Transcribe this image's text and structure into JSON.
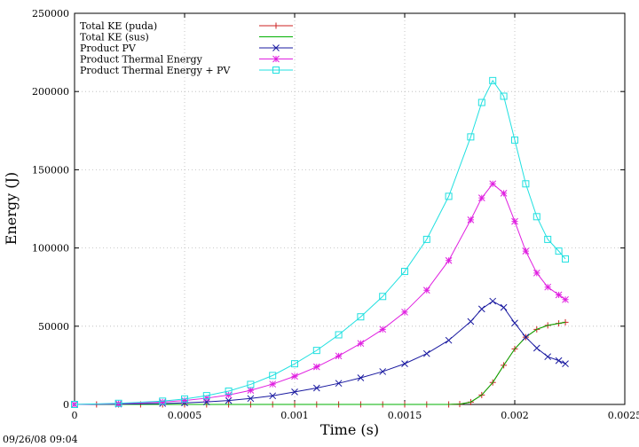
{
  "timestamp": "09/26/08 09:04",
  "chart_data": {
    "type": "line",
    "xlabel": "Time (s)",
    "ylabel": "Energy (J)",
    "xlim": [
      0,
      0.0025
    ],
    "ylim": [
      0,
      250000
    ],
    "x_ticks": [
      "0",
      "0.0005",
      "0.001",
      "0.0015",
      "0.002",
      "0.0025"
    ],
    "y_ticks": [
      "0",
      "50000",
      "100000",
      "150000",
      "200000",
      "250000"
    ],
    "x_tick_values": [
      0,
      0.0005,
      0.001,
      0.0015,
      0.002,
      0.0025
    ],
    "y_tick_values": [
      0,
      50000,
      100000,
      150000,
      200000,
      250000
    ],
    "grid": true,
    "legend_position": "top-left",
    "series": [
      {
        "name": "Total KE (puda)",
        "color": "#cc2222",
        "marker": "plus",
        "x": [
          0,
          0.0001,
          0.0002,
          0.0003,
          0.0004,
          0.0005,
          0.0006,
          0.0007,
          0.0008,
          0.0009,
          0.001,
          0.0011,
          0.0012,
          0.0013,
          0.0014,
          0.0015,
          0.0016,
          0.0017,
          0.00175,
          0.0018,
          0.00185,
          0.0019,
          0.00195,
          0.002,
          0.00205,
          0.0021,
          0.00215,
          0.0022,
          0.00223
        ],
        "y": [
          0,
          0,
          0,
          0,
          0,
          0,
          0,
          0,
          0,
          0,
          0,
          0,
          0,
          0,
          0,
          0,
          0,
          0,
          200,
          1500,
          6000,
          14000,
          25000,
          35500,
          43000,
          48000,
          50500,
          51800,
          52500
        ]
      },
      {
        "name": "Total KE (sus)",
        "color": "#00b000",
        "marker": "none",
        "x": [
          0,
          0.0001,
          0.0002,
          0.0003,
          0.0004,
          0.0005,
          0.0006,
          0.0007,
          0.0008,
          0.0009,
          0.001,
          0.0011,
          0.0012,
          0.0013,
          0.0014,
          0.0015,
          0.0016,
          0.0017,
          0.00175,
          0.0018,
          0.00185,
          0.0019,
          0.00195,
          0.002,
          0.00205,
          0.0021,
          0.00215,
          0.0022,
          0.00223
        ],
        "y": [
          0,
          0,
          0,
          0,
          0,
          0,
          0,
          0,
          0,
          0,
          0,
          0,
          0,
          0,
          0,
          0,
          0,
          0,
          200,
          1500,
          6000,
          14000,
          25000,
          35500,
          43000,
          48000,
          50500,
          51800,
          52500
        ]
      },
      {
        "name": "Product PV",
        "color": "#1a1aa0",
        "marker": "x",
        "x": [
          0,
          0.0002,
          0.0004,
          0.0005,
          0.0006,
          0.0007,
          0.0008,
          0.0009,
          0.001,
          0.0011,
          0.0012,
          0.0013,
          0.0014,
          0.0015,
          0.0016,
          0.0017,
          0.0018,
          0.00185,
          0.0019,
          0.00195,
          0.002,
          0.00205,
          0.0021,
          0.00215,
          0.0022,
          0.00223
        ],
        "y": [
          0,
          200,
          600,
          1000,
          1600,
          2500,
          3800,
          5500,
          8000,
          10500,
          13500,
          17000,
          21000,
          26000,
          32500,
          41000,
          53000,
          61000,
          66000,
          62000,
          52000,
          43000,
          36000,
          30500,
          28000,
          26000
        ]
      },
      {
        "name": "Product Thermal Energy",
        "color": "#e020e0",
        "marker": "star",
        "x": [
          0,
          0.0002,
          0.0004,
          0.0005,
          0.0006,
          0.0007,
          0.0008,
          0.0009,
          0.001,
          0.0011,
          0.0012,
          0.0013,
          0.0014,
          0.0015,
          0.0016,
          0.0017,
          0.0018,
          0.00185,
          0.0019,
          0.00195,
          0.002,
          0.00205,
          0.0021,
          0.00215,
          0.0022,
          0.00223
        ],
        "y": [
          0,
          500,
          1500,
          2500,
          4000,
          6000,
          9000,
          13000,
          18000,
          24000,
          31000,
          39000,
          48000,
          59000,
          73000,
          92000,
          118000,
          132000,
          141000,
          135000,
          117000,
          98000,
          84000,
          75000,
          70000,
          67000
        ]
      },
      {
        "name": "Product Thermal Energy + PV",
        "color": "#20e0e0",
        "marker": "square",
        "x": [
          0,
          0.0002,
          0.0004,
          0.0005,
          0.0006,
          0.0007,
          0.0008,
          0.0009,
          0.001,
          0.0011,
          0.0012,
          0.0013,
          0.0014,
          0.0015,
          0.0016,
          0.0017,
          0.0018,
          0.00185,
          0.0019,
          0.00195,
          0.002,
          0.00205,
          0.0021,
          0.00215,
          0.0022,
          0.00223
        ],
        "y": [
          0,
          700,
          2100,
          3500,
          5600,
          8500,
          12800,
          18500,
          26000,
          34500,
          44500,
          56000,
          69000,
          85000,
          105500,
          133000,
          171000,
          193000,
          207000,
          197000,
          169000,
          141000,
          120000,
          105500,
          98000,
          93000
        ]
      }
    ]
  }
}
